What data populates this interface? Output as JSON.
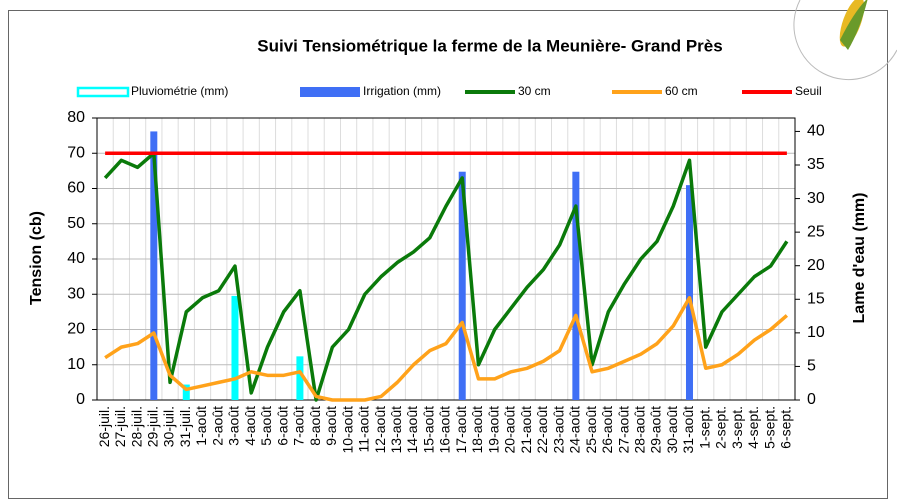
{
  "chart_data": {
    "type": "combo",
    "title": "Suivi Tensiométrique la ferme de la Meunière- Grand Près",
    "y_label": "Tension (cb)",
    "y2_label": "Lame d'eau (mm)",
    "categories": [
      "26-juil.",
      "27-juil.",
      "28-juil.",
      "29-juil.",
      "30-juil.",
      "31-juil.",
      "1-août",
      "2-août",
      "3-août",
      "4-août",
      "5-août",
      "6-août",
      "7-août",
      "8-août",
      "9-août",
      "10-août",
      "11-août",
      "12-août",
      "13-août",
      "14-août",
      "15-août",
      "16-août",
      "17-août",
      "18-août",
      "19-août",
      "20-août",
      "21-août",
      "22-août",
      "23-août",
      "24-août",
      "25-août",
      "26-août",
      "27-août",
      "28-août",
      "29-août",
      "30-août",
      "31-août",
      "1-sept.",
      "2-sept.",
      "3-sept.",
      "4-sept.",
      "5-sept.",
      "6-sept."
    ],
    "ylim": [
      0,
      80
    ],
    "yticks": [
      0,
      10,
      20,
      30,
      40,
      50,
      60,
      70,
      80
    ],
    "y2lim": [
      0,
      42
    ],
    "y2ticks": [
      0,
      5,
      10,
      15,
      20,
      25,
      30,
      35,
      40
    ],
    "grid": true,
    "series": [
      {
        "name": "Pluviométrie (mm)",
        "kind": "bar",
        "axis": "y2",
        "color": "#00ffff",
        "values": [
          null,
          null,
          null,
          null,
          null,
          2.3,
          null,
          null,
          15.5,
          null,
          null,
          null,
          6.5,
          null,
          null,
          null,
          null,
          null,
          null,
          null,
          null,
          null,
          null,
          null,
          null,
          null,
          null,
          null,
          null,
          null,
          null,
          null,
          null,
          null,
          null,
          null,
          null,
          null,
          null,
          null,
          null,
          null,
          null
        ]
      },
      {
        "name": "Irrigation (mm)",
        "kind": "bar",
        "axis": "y2",
        "color": "#3f6ff5",
        "values": [
          null,
          null,
          null,
          40,
          null,
          null,
          null,
          null,
          null,
          null,
          null,
          null,
          null,
          null,
          null,
          null,
          null,
          null,
          null,
          null,
          null,
          null,
          34,
          null,
          null,
          null,
          null,
          null,
          null,
          34,
          null,
          null,
          null,
          null,
          null,
          null,
          32,
          null,
          null,
          null,
          null,
          null,
          null
        ]
      },
      {
        "name": "30 cm",
        "kind": "line",
        "color": "#0a7a0a",
        "values": [
          63,
          68,
          66,
          70,
          5,
          25,
          29,
          31,
          38,
          2,
          15,
          25,
          31,
          0,
          15,
          20,
          30,
          35,
          39,
          42,
          46,
          55,
          63,
          10,
          20,
          26,
          32,
          37,
          44,
          55,
          10,
          25,
          33,
          40,
          45,
          55,
          68,
          15,
          25,
          30,
          35,
          38,
          45
        ]
      },
      {
        "name": "60 cm",
        "kind": "line",
        "color": "#ffa21a",
        "values": [
          12,
          15,
          16,
          19,
          7,
          3,
          4,
          5,
          6,
          8,
          7,
          7,
          8,
          1,
          0,
          0,
          0,
          1,
          5,
          10,
          14,
          16,
          22,
          6,
          6,
          8,
          9,
          11,
          14,
          24,
          8,
          9,
          11,
          13,
          16,
          21,
          29,
          9,
          10,
          13,
          17,
          20,
          24
        ]
      },
      {
        "name": "Seuil",
        "kind": "line",
        "color": "#ff0000",
        "values": [
          70,
          70,
          70,
          70,
          70,
          70,
          70,
          70,
          70,
          70,
          70,
          70,
          70,
          70,
          70,
          70,
          70,
          70,
          70,
          70,
          70,
          70,
          70,
          70,
          70,
          70,
          70,
          70,
          70,
          70,
          70,
          70,
          70,
          70,
          70,
          70,
          70,
          70,
          70,
          70,
          70,
          70,
          70
        ]
      }
    ]
  }
}
